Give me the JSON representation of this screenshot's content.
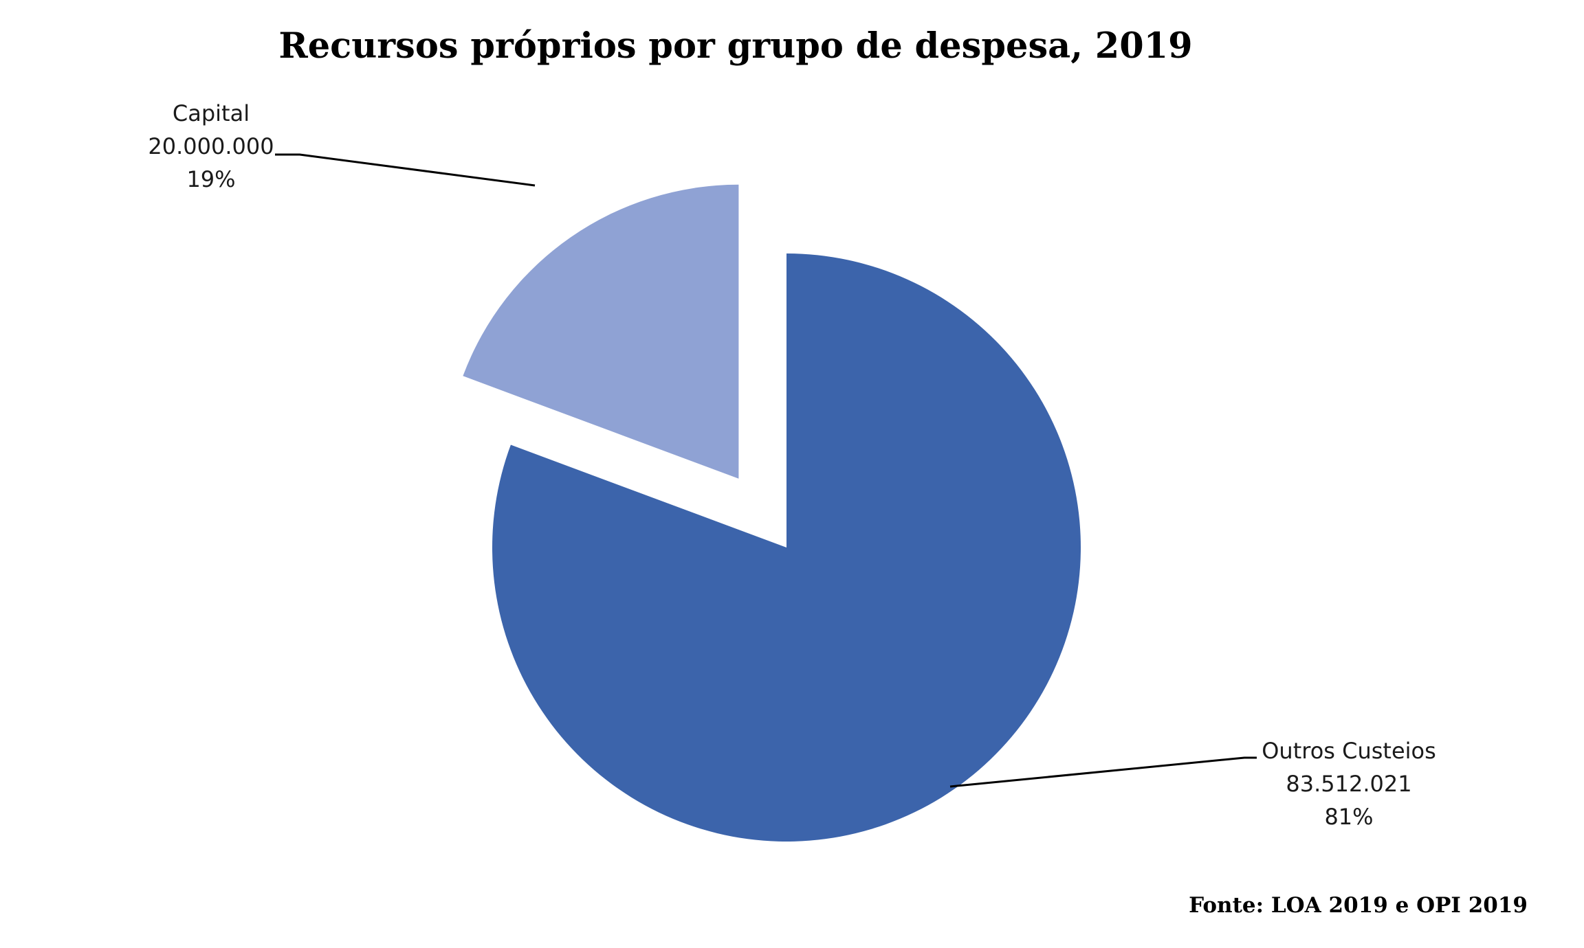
{
  "chart_data": {
    "type": "pie",
    "title": "Recursos próprios por grupo de despesa, 2019",
    "source": "Fonte: LOA 2019 e OPI 2019",
    "slices": [
      {
        "label": "Capital",
        "value": 20000000,
        "value_text": "20.000.000",
        "percent_text": "19%",
        "color": "#8fa2d4",
        "exploded": true
      },
      {
        "label": "Outros Custeios",
        "value": 83512021,
        "value_text": "83.512.021",
        "percent_text": "81%",
        "color": "#3c64ab",
        "exploded": false
      }
    ]
  }
}
